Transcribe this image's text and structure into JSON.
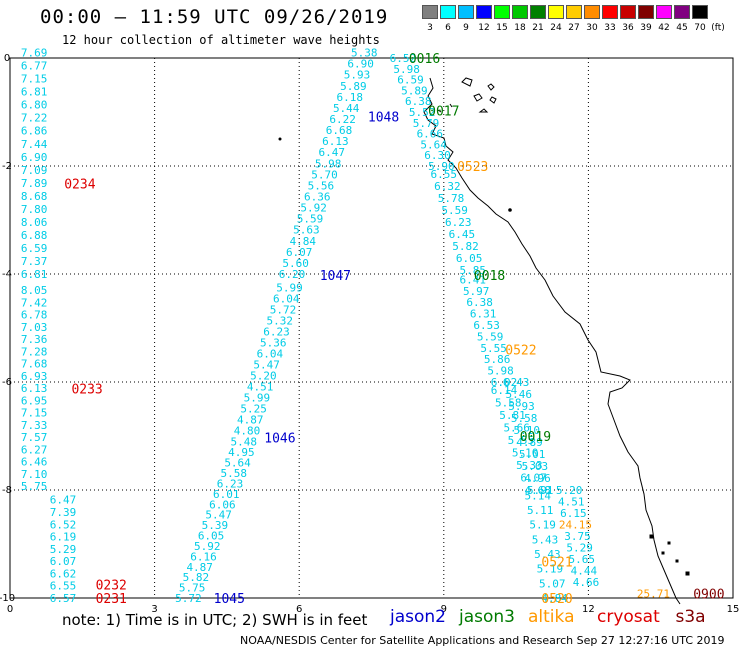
{
  "header": {
    "title": "00:00 – 11:59 UTC 09/26/2019",
    "subtitle": "12 hour collection of altimeter wave heights"
  },
  "color_scale": [
    {
      "label": "3",
      "color": "#808080"
    },
    {
      "label": "6",
      "color": "#00ffff"
    },
    {
      "label": "9",
      "color": "#00bfff"
    },
    {
      "label": "12",
      "color": "#0000ff"
    },
    {
      "label": "15",
      "color": "#00ff00"
    },
    {
      "label": "18",
      "color": "#00c800"
    },
    {
      "label": "21",
      "color": "#008000"
    },
    {
      "label": "24",
      "color": "#ffff00"
    },
    {
      "label": "27",
      "color": "#ffcc00"
    },
    {
      "label": "30",
      "color": "#ff8c00"
    },
    {
      "label": "33",
      "color": "#ff0000"
    },
    {
      "label": "36",
      "color": "#c80000"
    },
    {
      "label": "39",
      "color": "#800000"
    },
    {
      "label": "42",
      "color": "#ff00ff"
    },
    {
      "label": "45",
      "color": "#800080"
    },
    {
      "label": "70",
      "color": "#000000"
    },
    {
      "label": "(ft)",
      "color": "#ffffff"
    }
  ],
  "axes": {
    "x_ticks": [
      "0",
      "3",
      "6",
      "9",
      "12",
      "15"
    ],
    "y_ticks": [
      "0",
      "-2",
      "-4",
      "-6",
      "-8",
      "-10"
    ],
    "x_values": [
      0,
      3,
      6,
      9,
      12,
      15
    ],
    "y_values": [
      0,
      -2,
      -4,
      -6,
      -8,
      -10
    ],
    "xlim": [
      0,
      15
    ],
    "ylim": [
      -10,
      0
    ]
  },
  "colors": {
    "height": "#00cce6",
    "jason2": "#0000cc",
    "jason3": "#007a00",
    "altika": "#ff9900",
    "cryosat": "#dd0000",
    "s3a": "#800000"
  },
  "passes": [
    {
      "id": "p0234",
      "satellite": "cryosat",
      "time": "0234",
      "time_label": {
        "x": 1.45,
        "y": -2.32
      },
      "lon_start": 0.5,
      "lon_end": 0.5,
      "lat_start": 0.1,
      "lat_end": -4.0,
      "values": [
        7.69,
        6.77,
        7.15,
        6.81,
        6.8,
        7.22,
        6.86,
        7.44,
        6.9,
        7.09,
        7.89,
        8.68,
        7.8,
        8.06,
        6.88,
        6.59,
        7.37,
        6.81
      ]
    },
    {
      "id": "p0233",
      "satellite": "cryosat",
      "time": "0233",
      "time_label": {
        "x": 1.6,
        "y": -6.12
      },
      "lon_start": 0.5,
      "lon_end": 0.5,
      "lat_start": -4.3,
      "lat_end": -7.93,
      "values": [
        8.05,
        7.42,
        6.78,
        7.03,
        7.36,
        7.28,
        7.68,
        6.93,
        6.13,
        6.95,
        7.15,
        7.33,
        7.57,
        6.27,
        6.46,
        7.1,
        5.75
      ]
    },
    {
      "id": "p0232",
      "satellite": "cryosat",
      "time": "0232",
      "time_label": {
        "x": 2.1,
        "y": -9.75
      },
      "lon_start": 1.1,
      "lon_end": 1.1,
      "lat_start": -8.18,
      "lat_end": -10.0,
      "values": [
        6.47,
        7.39,
        6.52,
        6.19,
        5.29,
        6.07,
        6.62,
        6.55,
        6.57
      ]
    },
    {
      "id": "p0231",
      "satellite": "cryosat",
      "time": "0231",
      "time_label": {
        "x": 2.1,
        "y": -10.0
      },
      "lon_start": 1.1,
      "lon_end": 1.1,
      "lat_start": -10.0,
      "lat_end": -10.0,
      "values": []
    },
    {
      "id": "p1048",
      "satellite": "jason2",
      "time": "1048",
      "time_label": {
        "x": 7.75,
        "y": -1.08
      },
      "lon_start": 7.35,
      "lon_end": 5.85,
      "lat_start": 0.1,
      "lat_end": -4.0,
      "values": [
        5.38,
        6.9,
        5.93,
        5.89,
        6.18,
        5.44,
        6.22,
        6.68,
        6.13,
        6.47,
        5.98,
        5.7,
        5.56,
        6.36,
        5.92,
        5.59,
        5.63,
        4.84,
        6.07,
        5.6,
        6.2
      ]
    },
    {
      "id": "p1047",
      "satellite": "jason2",
      "time": "1047",
      "time_label": {
        "x": 6.75,
        "y": -4.02
      },
      "lon_start": 5.8,
      "lon_end": 4.85,
      "lat_start": -4.25,
      "lat_end": -7.1,
      "values": [
        5.99,
        6.04,
        5.72,
        5.32,
        6.23,
        5.36,
        6.04,
        5.47,
        5.2,
        4.51,
        5.99,
        5.25,
        4.87,
        4.8,
        5.48
      ]
    },
    {
      "id": "p1046",
      "satellite": "jason2",
      "time": "1046",
      "time_label": {
        "x": 5.6,
        "y": -7.03
      },
      "lon_start": 4.8,
      "lon_end": 3.7,
      "lat_start": -7.3,
      "lat_end": -10.0,
      "values": [
        4.95,
        5.64,
        5.58,
        6.23,
        6.01,
        6.06,
        5.47,
        5.39,
        6.05,
        5.92,
        6.16,
        4.87,
        5.82,
        5.75,
        5.72
      ]
    },
    {
      "id": "p1045",
      "satellite": "jason2",
      "time": "1045",
      "time_label": {
        "x": 4.55,
        "y": -10.0
      },
      "lon_start": 4.55,
      "lon_end": 4.55,
      "lat_start": -10.0,
      "lat_end": -10.0,
      "values": []
    },
    {
      "id": "p0016",
      "satellite": "jason3",
      "time": "0016",
      "time_label": {
        "x": 8.6,
        "y": 0.0
      },
      "lon_start": 8.15,
      "lon_end": 8.95,
      "lat_start": 0.0,
      "lat_end": -2.0,
      "values": [
        6.52,
        5.98,
        6.59,
        5.89,
        6.38,
        5.52,
        5.79,
        6.66,
        5.64,
        6.3,
        5.9
      ]
    },
    {
      "id": "p0017",
      "satellite": "jason3",
      "time": "0017",
      "time_label": {
        "x": 9.0,
        "y": -0.97
      },
      "lon_start": 8.75,
      "lon_end": 8.75,
      "lat_start": -1.0,
      "lat_end": -1.0,
      "values": []
    },
    {
      "id": "p0018",
      "satellite": "jason3",
      "time": "0018",
      "time_label": {
        "x": 9.95,
        "y": -4.02
      },
      "lon_start": 9.0,
      "lon_end": 9.6,
      "lat_start": -2.15,
      "lat_end": -3.93,
      "values": [
        6.55,
        6.32,
        5.78,
        5.59,
        6.23,
        6.45,
        5.82,
        6.05,
        5.85
      ]
    },
    {
      "id": "p0019",
      "satellite": "jason3",
      "time": "0019",
      "time_label": {
        "x": 10.9,
        "y": -7.0
      },
      "lon_start": 9.6,
      "lon_end": 10.25,
      "lat_start": -4.1,
      "lat_end": -6.0,
      "values": [
        6.41,
        5.97,
        6.38,
        6.31,
        6.53,
        5.59,
        5.55,
        5.86,
        5.98,
        6.02
      ]
    },
    {
      "id": "p0019b",
      "satellite": "jason3",
      "time": "",
      "time_label": {
        "x": 0,
        "y": 0
      },
      "lon_start": 10.25,
      "lon_end": 10.95,
      "lat_start": -6.15,
      "lat_end": -8.0,
      "values": [
        6.14,
        5.58,
        5.81,
        5.66,
        5.55,
        5.1,
        5.33,
        6.07,
        4.68
      ]
    },
    {
      "id": "p0019c",
      "satellite": "jason3",
      "time": "",
      "time_label": {
        "x": 0,
        "y": 0
      },
      "lon_start": 10.5,
      "lon_end": 11.0,
      "lat_start": -6.0,
      "lat_end": -8.0,
      "values": [
        6.43,
        5.46,
        5.93,
        5.58,
        5.1,
        4.89,
        5.01,
        5.03,
        4.96,
        5.91
      ]
    },
    {
      "id": "p0523",
      "satellite": "altika",
      "time": "0523",
      "time_label": {
        "x": 9.6,
        "y": -2.0
      },
      "lon_start": 9.25,
      "lon_end": 9.25,
      "lat_start": -2.0,
      "lat_end": -2.0,
      "values": []
    },
    {
      "id": "p0522",
      "satellite": "altika",
      "time": "0522",
      "time_label": {
        "x": 10.6,
        "y": -5.4
      },
      "lon_start": 10.3,
      "lon_end": 10.3,
      "lat_start": -5.4,
      "lat_end": -5.4,
      "values": []
    },
    {
      "id": "p0521",
      "satellite": "altika",
      "time": "0521",
      "time_label": {
        "x": 11.35,
        "y": -9.32
      },
      "lon_start": 10.95,
      "lon_end": 11.3,
      "lat_start": -8.1,
      "lat_end": -10.0,
      "values": [
        5.14,
        5.11,
        5.19,
        5.43,
        5.43,
        5.19,
        5.07,
        4.84
      ]
    },
    {
      "id": "p0520",
      "satellite": "altika",
      "time": "0520",
      "time_label": {
        "x": 11.35,
        "y": -10.0
      },
      "lon_start": 11.6,
      "lon_end": 11.95,
      "lat_start": -8.0,
      "lat_end": -9.7,
      "values": [
        5.2,
        4.51,
        6.15,
        24.15,
        3.75,
        5.29,
        5.65,
        4.44,
        4.66
      ]
    },
    {
      "id": "p0900",
      "satellite": "s3a",
      "time": "0900",
      "time_label": {
        "x": 14.5,
        "y": -9.92
      },
      "lon_start": 13.35,
      "lon_end": 13.35,
      "lat_start": -9.92,
      "lat_end": -9.92,
      "values": [
        25.71
      ]
    }
  ],
  "legend": [
    {
      "name": "jason2",
      "color": "#0000cc"
    },
    {
      "name": "jason3",
      "color": "#007a00"
    },
    {
      "name": "altika",
      "color": "#ff9900"
    },
    {
      "name": "cryosat",
      "color": "#dd0000"
    },
    {
      "name": "s3a",
      "color": "#800000"
    }
  ],
  "note": "note: 1) Time is in UTC; 2) SWH is in feet",
  "footer": "NOAA/NESDIS Center for Satellite Applications and Research   Sep 27 12:27:16 UTC 2019"
}
